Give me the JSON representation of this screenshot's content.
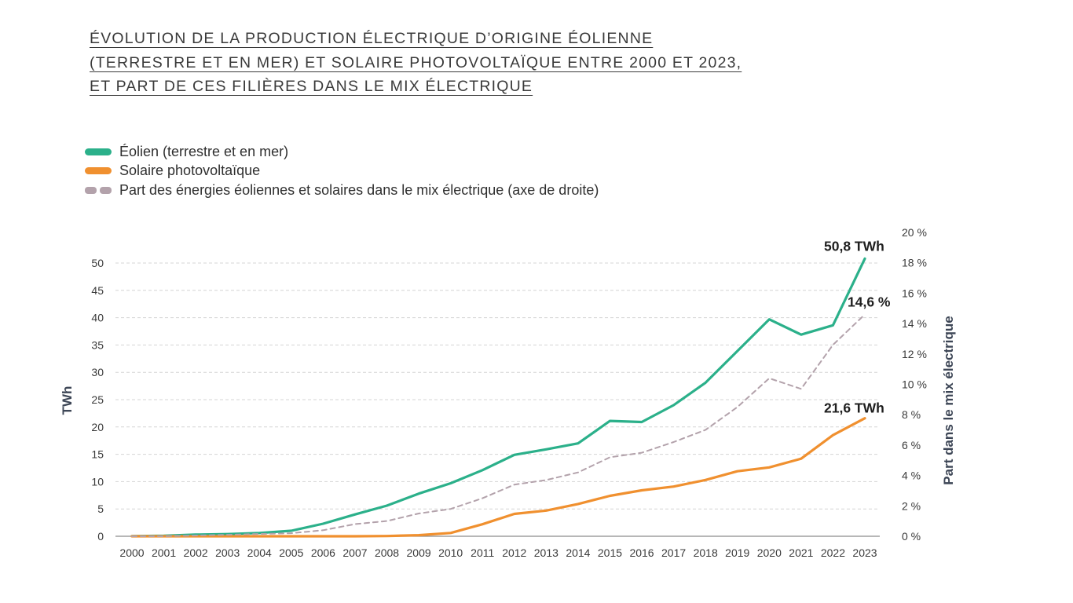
{
  "title_lines": [
    "ÉVOLUTION DE LA PRODUCTION ÉLECTRIQUE D’ORIGINE ÉOLIENNE",
    "(TERRESTRE ET EN MER) ET SOLAIRE PHOTOVOLTAÏQUE ENTRE 2000 ET 2023,",
    "ET PART DE CES FILIÈRES DANS LE MIX ÉLECTRIQUE"
  ],
  "legend": [
    {
      "label": "Éolien (terrestre et en mer)",
      "color": "#2bb08a",
      "style": "solid"
    },
    {
      "label": "Solaire photovoltaïque",
      "color": "#f0902f",
      "style": "solid"
    },
    {
      "label": "Part des énergies éoliennes et solaires dans le mix électrique (axe de droite)",
      "color": "#b3a2ab",
      "style": "dashed"
    }
  ],
  "chart_data": {
    "type": "line",
    "categories": [
      "2000",
      "2001",
      "2002",
      "2003",
      "2004",
      "2005",
      "2006",
      "2007",
      "2008",
      "2009",
      "2010",
      "2011",
      "2012",
      "2013",
      "2014",
      "2015",
      "2016",
      "2017",
      "2018",
      "2019",
      "2020",
      "2021",
      "2022",
      "2023"
    ],
    "series": [
      {
        "name": "Éolien (terrestre et en mer)",
        "axis": "left",
        "color": "#2bb08a",
        "values": [
          0.03,
          0.1,
          0.3,
          0.4,
          0.6,
          1.0,
          2.3,
          4.0,
          5.6,
          7.8,
          9.7,
          12.1,
          14.9,
          15.9,
          17.0,
          21.1,
          20.9,
          24.0,
          28.1,
          33.9,
          39.7,
          36.9,
          38.6,
          50.8
        ]
      },
      {
        "name": "Solaire photovoltaïque",
        "axis": "left",
        "color": "#f0902f",
        "values": [
          0.0,
          0.0,
          0.0,
          0.0,
          0.0,
          0.0,
          0.0,
          0.0,
          0.04,
          0.2,
          0.6,
          2.2,
          4.1,
          4.7,
          5.9,
          7.4,
          8.4,
          9.1,
          10.3,
          11.9,
          12.6,
          14.2,
          18.5,
          21.6
        ]
      },
      {
        "name": "Part des énergies éoliennes et solaires dans le mix électrique",
        "axis": "right",
        "color": "#b3a2ab",
        "dashed": true,
        "values": [
          0.0,
          0.0,
          0.05,
          0.1,
          0.15,
          0.2,
          0.4,
          0.8,
          1.0,
          1.5,
          1.8,
          2.5,
          3.4,
          3.7,
          4.2,
          5.2,
          5.5,
          6.2,
          7.0,
          8.5,
          10.4,
          9.7,
          12.6,
          14.6
        ]
      }
    ],
    "y_left": {
      "label": "TWh",
      "ylim": [
        0,
        50
      ],
      "ticks": [
        0,
        5,
        10,
        15,
        20,
        25,
        30,
        35,
        40,
        45,
        50
      ]
    },
    "y_right": {
      "label": "Part dans le mix électrique",
      "ylim": [
        0,
        20
      ],
      "ticks": [
        0,
        2,
        4,
        6,
        8,
        10,
        12,
        14,
        16,
        18,
        20
      ],
      "tick_labels": [
        "0 %",
        "2 %",
        "4 %",
        "6 %",
        "8 %",
        "10 %",
        "12 %",
        "14 %",
        "16 %",
        "18 %",
        "20 %"
      ]
    },
    "annotations": [
      {
        "text": "50,8 TWh",
        "series": 0,
        "index": 23
      },
      {
        "text": "14,6 %",
        "series": 2,
        "index": 23
      },
      {
        "text": "21,6 TWh",
        "series": 1,
        "index": 23
      }
    ],
    "grid": true
  }
}
